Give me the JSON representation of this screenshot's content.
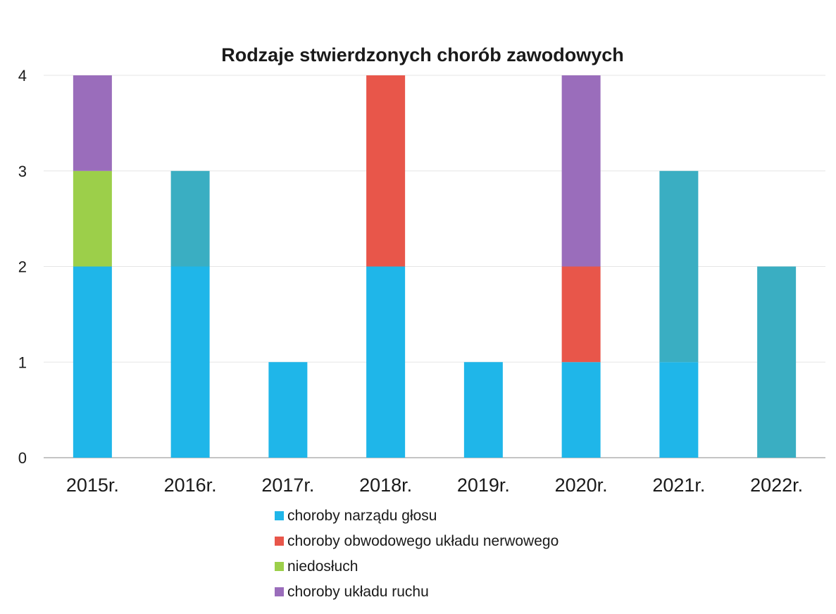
{
  "chart_data": {
    "type": "bar",
    "stacked": true,
    "title": "Rodzaje stwierdzonych chorób zawodowych",
    "xlabel": "",
    "ylabel": "",
    "categories": [
      "2015r.",
      "2016r.",
      "2017r.",
      "2018r.",
      "2019r.",
      "2020r.",
      "2021r.",
      "2022r."
    ],
    "ylim": [
      0,
      4
    ],
    "yticks": [
      "0",
      "1",
      "2",
      "3",
      "4"
    ],
    "grid": true,
    "legend_position": "bottom",
    "series": [
      {
        "name": "choroby narządu głosu",
        "color": "#1fb6e9",
        "values": [
          2,
          2,
          1,
          2,
          1,
          1,
          1,
          0
        ]
      },
      {
        "name": "choroby obwodowego układu nerwowego",
        "color": "#e8564a",
        "values": [
          0,
          0,
          0,
          2,
          0,
          1,
          0,
          0
        ]
      },
      {
        "name": "niedosłuch",
        "color": "#9ccf4a",
        "values": [
          1,
          0,
          0,
          0,
          0,
          0,
          0,
          0
        ]
      },
      {
        "name": "choroby układu ruchu",
        "color": "#9a6dbb",
        "values": [
          1,
          0,
          0,
          0,
          0,
          2,
          0,
          0
        ]
      },
      {
        "name": "",
        "color": "#3aaec2",
        "values": [
          0,
          1,
          0,
          0,
          0,
          0,
          2,
          2
        ]
      }
    ]
  }
}
